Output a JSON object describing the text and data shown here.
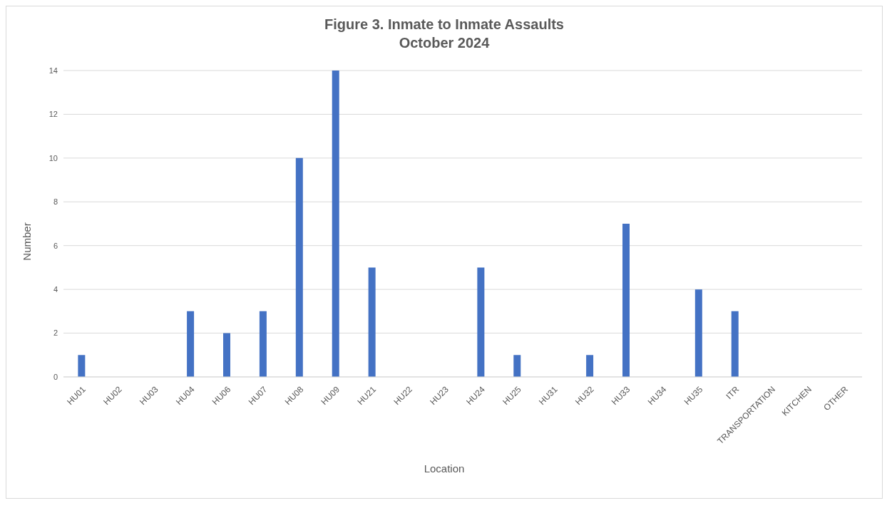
{
  "chart_data": {
    "type": "bar",
    "title": "Figure 3. Inmate to Inmate Assaults",
    "subtitle": "October 2024",
    "xlabel": "Location",
    "ylabel": "Number",
    "categories": [
      "HU01",
      "HU02",
      "HU03",
      "HU04",
      "HU06",
      "HU07",
      "HU08",
      "HU09",
      "HU21",
      "HU22",
      "HU23",
      "HU24",
      "HU25",
      "HU31",
      "HU32",
      "HU33",
      "HU34",
      "HU35",
      "ITR",
      "TRANSPORTATION",
      "KITCHEN",
      "OTHER"
    ],
    "values": [
      1,
      0,
      0,
      3,
      2,
      3,
      10,
      14,
      5,
      0,
      0,
      5,
      1,
      0,
      1,
      7,
      0,
      4,
      3,
      0,
      0,
      0
    ],
    "color": "#4472c4",
    "ylim": [
      0,
      14
    ],
    "yticks": [
      0,
      2,
      4,
      6,
      8,
      10,
      12,
      14
    ],
    "grid": "y"
  }
}
